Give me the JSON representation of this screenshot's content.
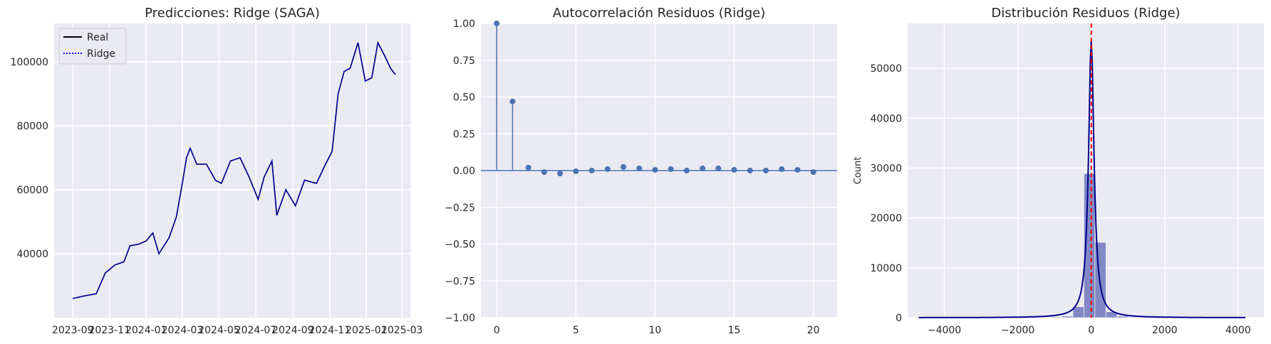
{
  "chart_data": [
    {
      "type": "line",
      "title": "Predicciones: Ridge (SAGA)",
      "xlabel": "",
      "ylabel": "",
      "x_ticks": [
        "2023-09",
        "2023-11",
        "2024-01",
        "2024-03",
        "2024-05",
        "2024-07",
        "2024-09",
        "2024-11",
        "2025-01",
        "2025-03"
      ],
      "x_range": [
        "2023-08-01",
        "2025-03-15"
      ],
      "ylim": [
        20000,
        112000
      ],
      "y_ticks": [
        40000,
        60000,
        80000,
        100000
      ],
      "y_tick_labels": [
        "40000",
        "60000",
        "80000",
        "100000"
      ],
      "legend": {
        "position": "top-left",
        "entries": [
          {
            "label": "Real",
            "color": "#000000",
            "style": "solid"
          },
          {
            "label": "Ridge",
            "color": "#0000ff",
            "style": "dotted"
          }
        ]
      },
      "series": [
        {
          "name": "Real",
          "color": "#000000",
          "points": [
            [
              "2023-09-01",
              26000
            ],
            [
              "2023-09-20",
              26800
            ],
            [
              "2023-10-10",
              27500
            ],
            [
              "2023-10-25",
              34000
            ],
            [
              "2023-11-10",
              36500
            ],
            [
              "2023-11-25",
              37500
            ],
            [
              "2023-12-05",
              42500
            ],
            [
              "2023-12-20",
              43000
            ],
            [
              "2024-01-01",
              44000
            ],
            [
              "2024-01-12",
              46500
            ],
            [
              "2024-01-22",
              40000
            ],
            [
              "2024-02-08",
              45000
            ],
            [
              "2024-02-20",
              51500
            ],
            [
              "2024-03-01",
              62000
            ],
            [
              "2024-03-08",
              70000
            ],
            [
              "2024-03-14",
              73000
            ],
            [
              "2024-03-25",
              68000
            ],
            [
              "2024-04-10",
              68000
            ],
            [
              "2024-04-25",
              63000
            ],
            [
              "2024-05-05",
              62000
            ],
            [
              "2024-05-20",
              69000
            ],
            [
              "2024-06-05",
              70000
            ],
            [
              "2024-06-20",
              64000
            ],
            [
              "2024-07-05",
              57000
            ],
            [
              "2024-07-15",
              64000
            ],
            [
              "2024-07-28",
              69000
            ],
            [
              "2024-08-05",
              52000
            ],
            [
              "2024-08-20",
              60000
            ],
            [
              "2024-09-05",
              55000
            ],
            [
              "2024-09-20",
              63000
            ],
            [
              "2024-10-10",
              62000
            ],
            [
              "2024-10-25",
              68000
            ],
            [
              "2024-11-05",
              72000
            ],
            [
              "2024-11-15",
              90000
            ],
            [
              "2024-11-25",
              97000
            ],
            [
              "2024-12-05",
              98000
            ],
            [
              "2024-12-18",
              106000
            ],
            [
              "2024-12-30",
              94000
            ],
            [
              "2025-01-10",
              95000
            ],
            [
              "2025-01-20",
              106000
            ],
            [
              "2025-01-31",
              102000
            ],
            [
              "2025-02-10",
              98000
            ],
            [
              "2025-02-18",
              96000
            ]
          ]
        },
        {
          "name": "Ridge",
          "color": "#0000ff",
          "points": [
            [
              "2023-09-01",
              26000
            ],
            [
              "2023-09-20",
              26800
            ],
            [
              "2023-10-10",
              27500
            ],
            [
              "2023-10-25",
              34000
            ],
            [
              "2023-11-10",
              36500
            ],
            [
              "2023-11-25",
              37500
            ],
            [
              "2023-12-05",
              42500
            ],
            [
              "2023-12-20",
              43000
            ],
            [
              "2024-01-01",
              44000
            ],
            [
              "2024-01-12",
              46500
            ],
            [
              "2024-01-22",
              40000
            ],
            [
              "2024-02-08",
              45000
            ],
            [
              "2024-02-20",
              51500
            ],
            [
              "2024-03-01",
              62000
            ],
            [
              "2024-03-08",
              70000
            ],
            [
              "2024-03-14",
              73000
            ],
            [
              "2024-03-25",
              68000
            ],
            [
              "2024-04-10",
              68000
            ],
            [
              "2024-04-25",
              63000
            ],
            [
              "2024-05-05",
              62000
            ],
            [
              "2024-05-20",
              69000
            ],
            [
              "2024-06-05",
              70000
            ],
            [
              "2024-06-20",
              64000
            ],
            [
              "2024-07-05",
              57000
            ],
            [
              "2024-07-15",
              64000
            ],
            [
              "2024-07-28",
              69000
            ],
            [
              "2024-08-05",
              52000
            ],
            [
              "2024-08-20",
              60000
            ],
            [
              "2024-09-05",
              55000
            ],
            [
              "2024-09-20",
              63000
            ],
            [
              "2024-10-10",
              62000
            ],
            [
              "2024-10-25",
              68000
            ],
            [
              "2024-11-05",
              72000
            ],
            [
              "2024-11-15",
              90000
            ],
            [
              "2024-11-25",
              97000
            ],
            [
              "2024-12-05",
              98000
            ],
            [
              "2024-12-18",
              106000
            ],
            [
              "2024-12-30",
              94000
            ],
            [
              "2025-01-10",
              95000
            ],
            [
              "2025-01-20",
              106000
            ],
            [
              "2025-01-31",
              102000
            ],
            [
              "2025-02-10",
              98000
            ],
            [
              "2025-02-18",
              96000
            ]
          ]
        }
      ],
      "grid": true
    },
    {
      "type": "stem",
      "title": "Autocorrelación Residuos (Ridge)",
      "xlabel": "",
      "ylabel": "",
      "xlim": [
        -1,
        21.5
      ],
      "ylim": [
        -1,
        1
      ],
      "x_ticks": [
        0,
        5,
        10,
        15,
        20
      ],
      "y_ticks": [
        -1.0,
        -0.75,
        -0.5,
        -0.25,
        0.0,
        0.25,
        0.5,
        0.75,
        1.0
      ],
      "y_tick_labels": [
        "−1.00",
        "−0.75",
        "−0.50",
        "−0.25",
        "0.00",
        "0.25",
        "0.50",
        "0.75",
        "1.00"
      ],
      "lags": [
        0,
        1,
        2,
        3,
        4,
        5,
        6,
        7,
        8,
        9,
        10,
        11,
        12,
        13,
        14,
        15,
        16,
        17,
        18,
        19,
        20
      ],
      "values": [
        1.0,
        0.47,
        0.02,
        -0.01,
        -0.02,
        -0.005,
        0.0,
        0.01,
        0.025,
        0.015,
        0.005,
        0.01,
        0.0,
        0.015,
        0.015,
        0.005,
        0.0,
        0.0,
        0.01,
        0.005,
        -0.01
      ],
      "color": "#4c72b0",
      "grid": true
    },
    {
      "type": "histogram",
      "title": "Distribución Residuos (Ridge)",
      "xlabel": "",
      "ylabel": "Count",
      "xlim": [
        -5000,
        4700
      ],
      "ylim": [
        0,
        59000
      ],
      "x_ticks": [
        -4000,
        -2000,
        0,
        2000,
        4000
      ],
      "x_tick_labels": [
        "−4000",
        "−2000",
        "0",
        "2000",
        "4000"
      ],
      "y_ticks": [
        0,
        10000,
        20000,
        30000,
        40000,
        50000
      ],
      "y_tick_labels": [
        "0",
        "10000",
        "20000",
        "30000",
        "40000",
        "50000"
      ],
      "bin_edges": [
        -4700,
        -4400,
        -4100,
        -3800,
        -3500,
        -3200,
        -2900,
        -2600,
        -2300,
        -2000,
        -1700,
        -1400,
        -1100,
        -800,
        -500,
        -200,
        100,
        400,
        700,
        1000,
        1300,
        1600,
        1900,
        2200,
        2500,
        2800,
        3100,
        3400,
        3700,
        4000,
        4200
      ],
      "counts": [
        50,
        20,
        20,
        30,
        30,
        30,
        40,
        40,
        60,
        60,
        80,
        100,
        150,
        300,
        2200,
        28900,
        15100,
        1200,
        300,
        120,
        80,
        60,
        40,
        30,
        30,
        20,
        20,
        20,
        20,
        20
      ],
      "kde_peak": 55500,
      "kde_center": 0,
      "kde_width": 90,
      "bar_color": "#3b46a5",
      "kde_color": "#00008b",
      "reference_line": {
        "x": 0,
        "color": "#ff0000",
        "style": "dashed"
      },
      "grid": true
    }
  ]
}
